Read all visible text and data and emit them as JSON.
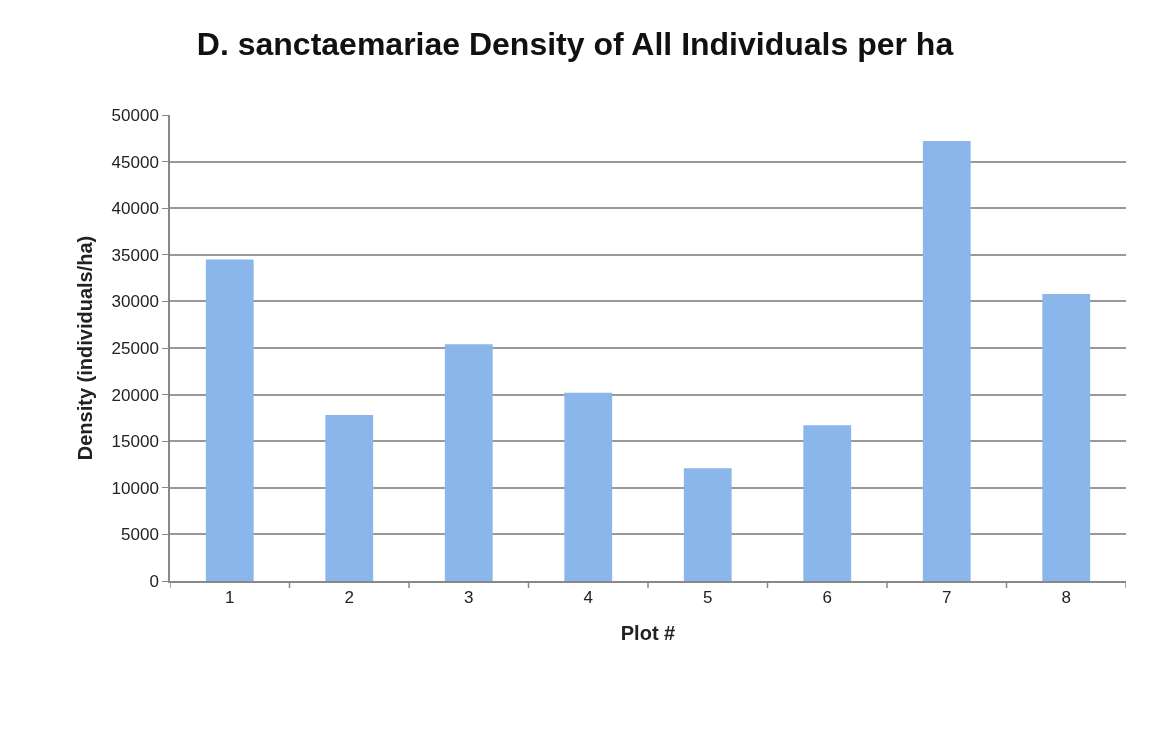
{
  "chart_data": {
    "type": "bar",
    "title": "D. sanctaemariae Density of All Individuals per ha",
    "xlabel": "Plot #",
    "ylabel": "Density (individuals/ha)",
    "categories": [
      "1",
      "2",
      "3",
      "4",
      "5",
      "6",
      "7",
      "8"
    ],
    "values": [
      34500,
      17800,
      25400,
      20200,
      12100,
      16700,
      47200,
      30800
    ],
    "color": "#8ab6ec",
    "ylim": [
      0,
      50000
    ],
    "yticks": [
      0,
      5000,
      10000,
      15000,
      20000,
      25000,
      30000,
      35000,
      40000,
      45000,
      50000
    ],
    "grid": "y",
    "legend": false
  }
}
